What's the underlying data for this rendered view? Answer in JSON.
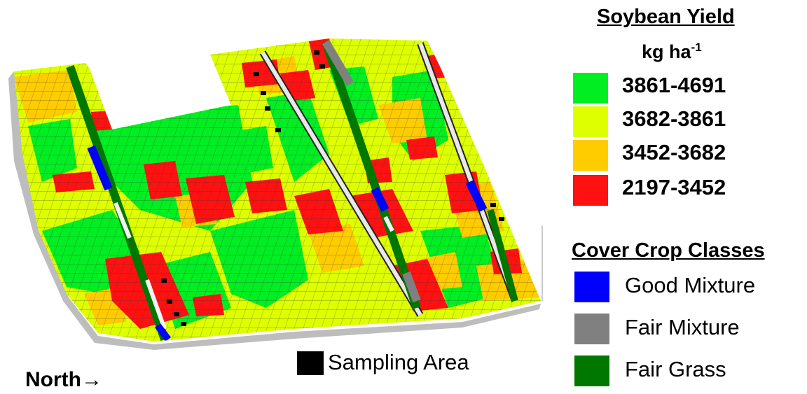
{
  "legend": {
    "yield_title": "Soybean Yield",
    "yield_unit": "kg ha",
    "yield_unit_sup": "-1",
    "yield_classes": [
      {
        "label": "3861-4691",
        "color": "#00ee22"
      },
      {
        "label": "3682-3861",
        "color": "#ddff00"
      },
      {
        "label": "3452-3682",
        "color": "#ffcc00"
      },
      {
        "label": "2197-3452",
        "color": "#ff1111"
      }
    ],
    "cover_title": "Cover Crop Classes",
    "cover_classes": [
      {
        "label": "Good Mixture",
        "color": "#0000ff"
      },
      {
        "label": "Fair Mixture",
        "color": "#808080"
      },
      {
        "label": "Fair Grass",
        "color": "#007700"
      }
    ]
  },
  "sampling_label": "Sampling Area",
  "north_label": "North",
  "north_arrow": "→"
}
